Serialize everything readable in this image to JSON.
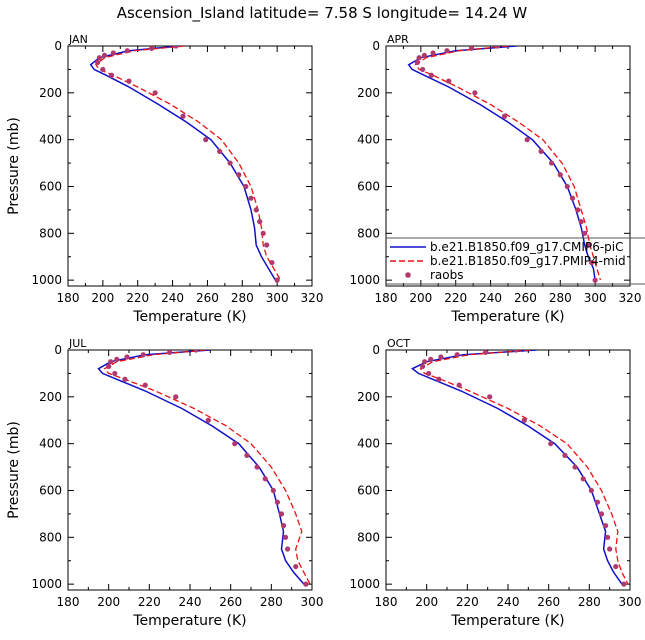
{
  "figure": {
    "title": "Ascension_Island   latitude= 7.58 S longitude= 14.24 W"
  },
  "legend": {
    "entries": [
      {
        "label": "b.e21.B1850.f09_g17.CMIP6-piC",
        "color": "#1010cc",
        "style": "solid"
      },
      {
        "label": "b.e21.B1850.f09_g17.PMIP4-mid",
        "color": "#ee1111",
        "style": "dashed"
      },
      {
        "label": "raobs",
        "color": "#b03a6e",
        "style": "dots"
      }
    ]
  },
  "chart_data": [
    {
      "type": "line",
      "panel_label": "JAN",
      "xlabel": "Temperature (K)",
      "ylabel": "Pressure (mb)",
      "xlim": [
        180,
        320
      ],
      "ylim": [
        1025,
        0
      ],
      "xticks": [
        180,
        200,
        220,
        240,
        260,
        280,
        300,
        320
      ],
      "yticks": [
        0,
        200,
        400,
        600,
        800,
        1000
      ],
      "series": [
        {
          "name": "b.e21.B1850.f09_g17.CMIP6-piC",
          "color": "#1010cc",
          "style": "solid",
          "x": [
            244,
            215,
            198,
            193,
            195,
            202,
            215,
            232,
            248,
            262,
            273,
            281,
            285,
            287,
            288,
            291,
            295,
            299
          ],
          "y": [
            0,
            20,
            50,
            80,
            100,
            125,
            175,
            250,
            325,
            400,
            500,
            600,
            700,
            775,
            850,
            900,
            950,
            1000
          ]
        },
        {
          "name": "b.e21.B1850.f09_g17.PMIP4-mid",
          "color": "#ee1111",
          "style": "dashed",
          "x": [
            247,
            218,
            201,
            196,
            198,
            206,
            220,
            239,
            255,
            268,
            278,
            285,
            289,
            291,
            292,
            294,
            298,
            302
          ],
          "y": [
            0,
            20,
            50,
            80,
            100,
            125,
            175,
            250,
            325,
            400,
            500,
            600,
            700,
            775,
            850,
            900,
            950,
            1000
          ]
        },
        {
          "name": "raobs",
          "color": "#b03a6e",
          "style": "dots",
          "x": [
            242,
            228,
            214,
            206,
            201,
            198,
            197,
            200,
            205,
            215,
            230,
            246,
            259,
            267,
            273,
            278,
            282,
            285,
            288,
            290,
            292,
            294,
            297,
            300
          ],
          "y": [
            0,
            10,
            20,
            30,
            40,
            50,
            70,
            100,
            125,
            150,
            200,
            300,
            400,
            450,
            500,
            550,
            600,
            650,
            700,
            750,
            800,
            850,
            925,
            1000
          ]
        }
      ]
    },
    {
      "type": "line",
      "panel_label": "APR",
      "xlabel": "Temperature (K)",
      "ylabel": "",
      "xlim": [
        180,
        320
      ],
      "ylim": [
        1025,
        0
      ],
      "xticks": [
        180,
        200,
        220,
        240,
        260,
        280,
        300,
        320
      ],
      "yticks": [
        0,
        200,
        400,
        600,
        800,
        1000
      ],
      "series": [
        {
          "name": "b.e21.B1850.f09_g17.CMIP6-piC",
          "color": "#1010cc",
          "style": "solid",
          "x": [
            255,
            220,
            200,
            193,
            195,
            202,
            216,
            234,
            250,
            264,
            276,
            284,
            289,
            292,
            294,
            296,
            299,
            300
          ],
          "y": [
            0,
            20,
            50,
            80,
            100,
            125,
            175,
            250,
            325,
            400,
            500,
            600,
            700,
            775,
            850,
            900,
            950,
            1000
          ]
        },
        {
          "name": "b.e21.B1850.f09_g17.PMIP4-mid",
          "color": "#ee1111",
          "style": "dashed",
          "x": [
            250,
            222,
            203,
            197,
            199,
            207,
            221,
            240,
            256,
            270,
            281,
            288,
            292,
            295,
            297,
            299,
            301,
            303
          ],
          "y": [
            0,
            20,
            50,
            80,
            100,
            125,
            175,
            250,
            325,
            400,
            500,
            600,
            700,
            775,
            850,
            900,
            950,
            1000
          ]
        },
        {
          "name": "raobs",
          "color": "#b03a6e",
          "style": "dots",
          "x": [
            244,
            229,
            215,
            207,
            202,
            199,
            198,
            201,
            206,
            216,
            231,
            248,
            261,
            269,
            275,
            280,
            284,
            287,
            290,
            292,
            294,
            296,
            298,
            300
          ],
          "y": [
            0,
            10,
            20,
            30,
            40,
            50,
            70,
            100,
            125,
            150,
            200,
            300,
            400,
            450,
            500,
            550,
            600,
            650,
            700,
            750,
            800,
            850,
            925,
            1000
          ]
        }
      ]
    },
    {
      "type": "line",
      "panel_label": "JUL",
      "xlabel": "Temperature (K)",
      "ylabel": "Pressure (mb)",
      "xlim": [
        180,
        300
      ],
      "ylim": [
        1025,
        0
      ],
      "xticks": [
        180,
        200,
        220,
        240,
        260,
        280,
        300
      ],
      "yticks": [
        0,
        200,
        400,
        600,
        800,
        1000
      ],
      "series": [
        {
          "name": "b.e21.B1850.f09_g17.CMIP6-piC",
          "color": "#1010cc",
          "style": "solid",
          "x": [
            250,
            218,
            201,
            195,
            197,
            204,
            218,
            236,
            251,
            264,
            274,
            281,
            284,
            286,
            285,
            287,
            291,
            296
          ],
          "y": [
            0,
            20,
            50,
            80,
            100,
            125,
            175,
            250,
            325,
            400,
            500,
            600,
            700,
            775,
            850,
            900,
            950,
            1000
          ]
        },
        {
          "name": "b.e21.B1850.f09_g17.PMIP4-mid",
          "color": "#ee1111",
          "style": "dashed",
          "x": [
            248,
            222,
            204,
            198,
            200,
            208,
            223,
            242,
            258,
            270,
            280,
            287,
            292,
            295,
            292,
            293,
            296,
            299
          ],
          "y": [
            0,
            20,
            50,
            80,
            100,
            125,
            175,
            250,
            325,
            400,
            500,
            600,
            700,
            775,
            850,
            900,
            950,
            1000
          ]
        },
        {
          "name": "raobs",
          "color": "#b03a6e",
          "style": "dots",
          "x": [
            243,
            230,
            217,
            209,
            204,
            201,
            200,
            203,
            208,
            218,
            233,
            249,
            262,
            268,
            273,
            277,
            281,
            283,
            285,
            286,
            287,
            288,
            292,
            297
          ],
          "y": [
            0,
            10,
            20,
            30,
            40,
            50,
            70,
            100,
            125,
            150,
            200,
            300,
            400,
            450,
            500,
            550,
            600,
            650,
            700,
            750,
            800,
            850,
            925,
            1000
          ]
        }
      ]
    },
    {
      "type": "line",
      "panel_label": "OCT",
      "xlabel": "Temperature (K)",
      "ylabel": "",
      "xlim": [
        180,
        300
      ],
      "ylim": [
        1025,
        0
      ],
      "xticks": [
        180,
        200,
        220,
        240,
        260,
        280,
        300
      ],
      "yticks": [
        0,
        200,
        400,
        600,
        800,
        1000
      ],
      "series": [
        {
          "name": "b.e21.B1850.f09_g17.CMIP6-piC",
          "color": "#1010cc",
          "style": "solid",
          "x": [
            254,
            218,
            200,
            193,
            196,
            203,
            217,
            235,
            250,
            263,
            274,
            281,
            285,
            288,
            287,
            289,
            292,
            296
          ],
          "y": [
            0,
            20,
            50,
            80,
            100,
            125,
            175,
            250,
            325,
            400,
            500,
            600,
            700,
            775,
            850,
            900,
            950,
            1000
          ]
        },
        {
          "name": "b.e21.B1850.f09_g17.PMIP4-mid",
          "color": "#ee1111",
          "style": "dashed",
          "x": [
            251,
            221,
            203,
            197,
            199,
            207,
            221,
            240,
            256,
            269,
            279,
            286,
            291,
            294,
            293,
            294,
            296,
            299
          ],
          "y": [
            0,
            20,
            50,
            80,
            100,
            125,
            175,
            250,
            325,
            400,
            500,
            600,
            700,
            775,
            850,
            900,
            950,
            1000
          ]
        },
        {
          "name": "raobs",
          "color": "#b03a6e",
          "style": "dots",
          "x": [
            244,
            229,
            215,
            207,
            202,
            199,
            198,
            201,
            206,
            216,
            231,
            248,
            261,
            268,
            273,
            277,
            281,
            284,
            286,
            288,
            289,
            290,
            293,
            297
          ],
          "y": [
            0,
            10,
            20,
            30,
            40,
            50,
            70,
            100,
            125,
            150,
            200,
            300,
            400,
            450,
            500,
            550,
            600,
            650,
            700,
            750,
            800,
            850,
            925,
            1000
          ]
        }
      ]
    }
  ]
}
